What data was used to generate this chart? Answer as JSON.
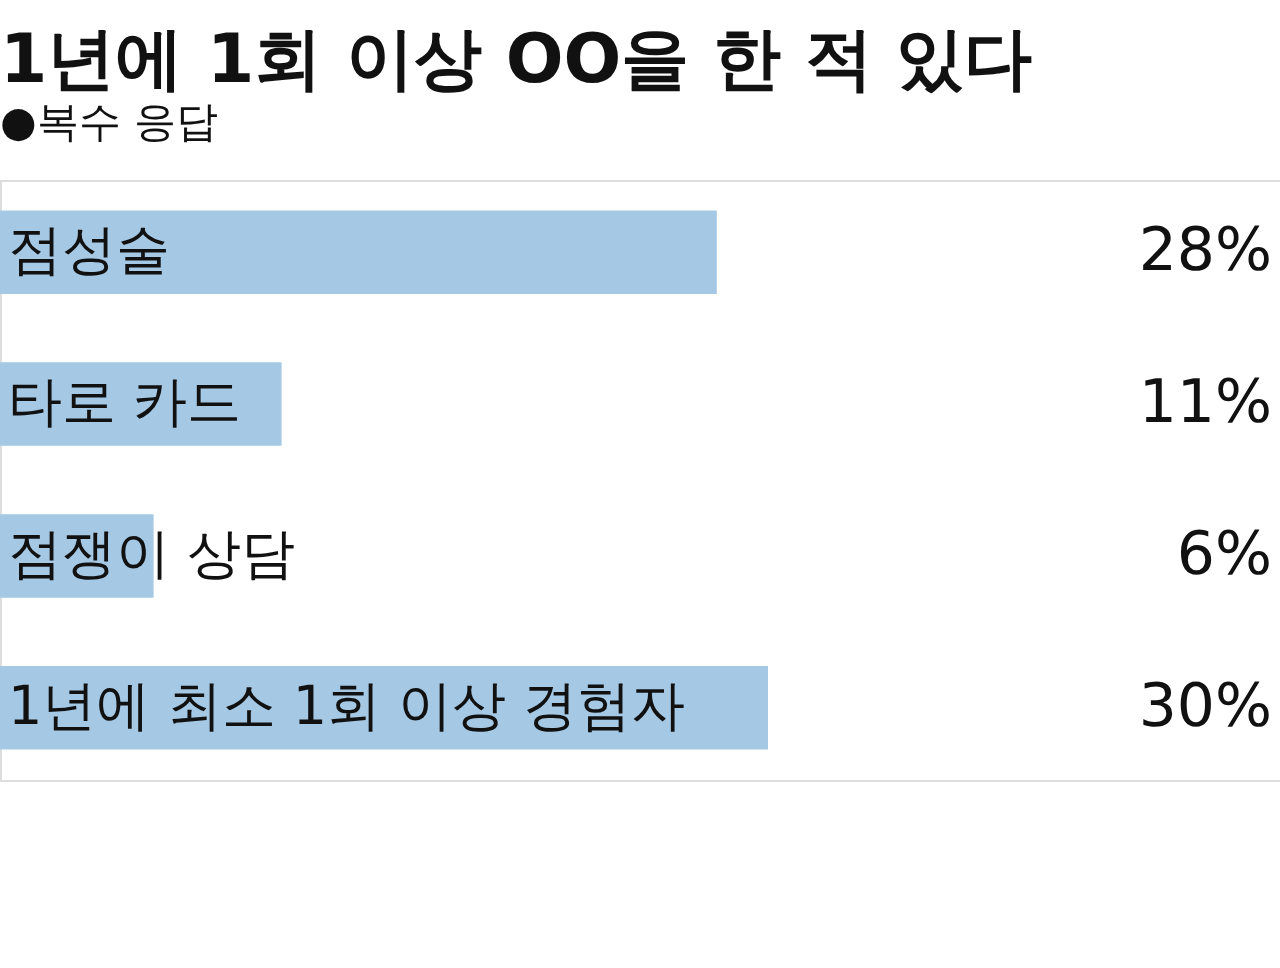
{
  "chart_data": {
    "type": "bar",
    "orientation": "horizontal",
    "title": "1년에 1회 이상 OO을 한 적 있다",
    "annotations": [
      "●복수 응답"
    ],
    "categories": [
      "점성술",
      "타로 카드",
      "점쟁이 상담",
      "1년에 최소 1회 이상 경험자"
    ],
    "values": [
      28,
      11,
      6,
      30
    ],
    "color": "#a5c8e4",
    "value_labels": [
      "28%",
      "11%",
      "6%",
      "30%"
    ],
    "xlim": [
      0,
      50
    ],
    "grid": false
  }
}
